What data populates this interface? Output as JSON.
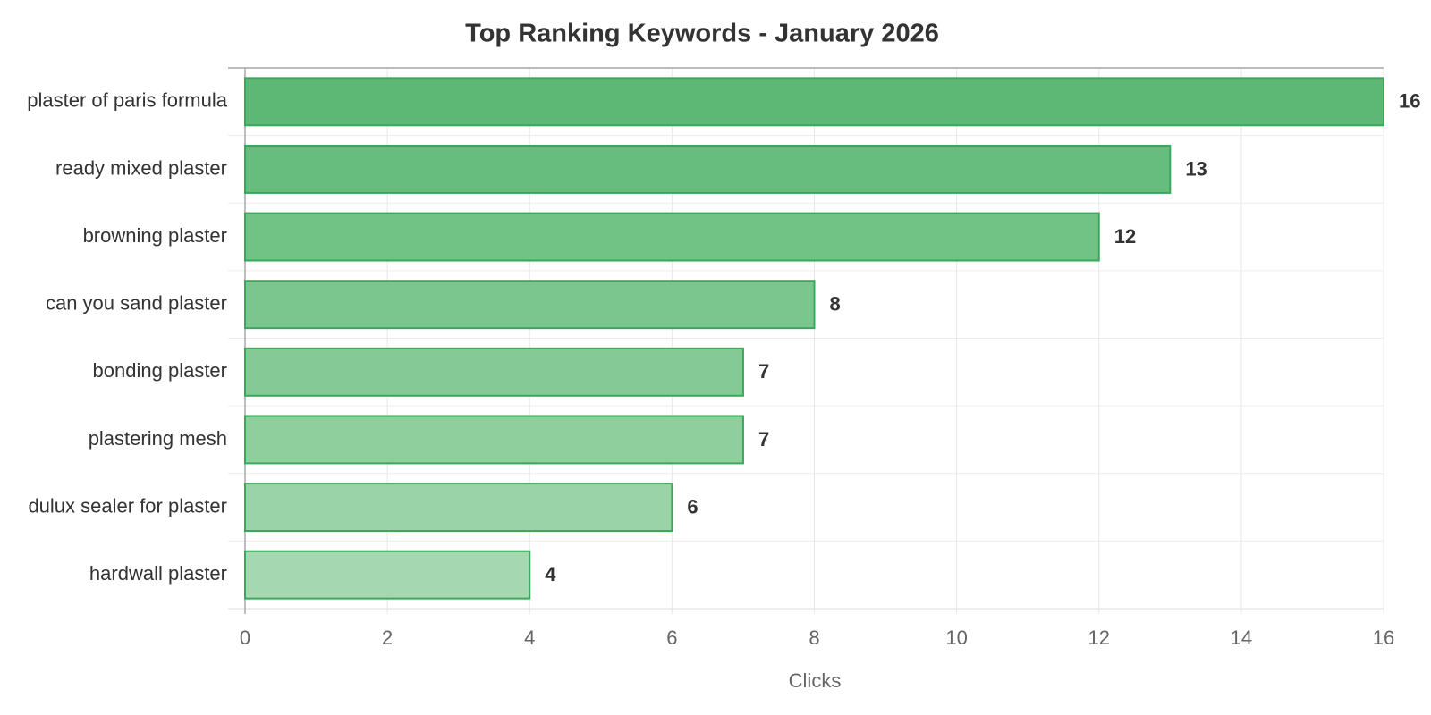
{
  "chart_data": {
    "type": "bar",
    "orientation": "horizontal",
    "title": "Top Ranking Keywords - January 2026",
    "x_label": "Clicks",
    "categories": [
      "plaster of paris formula",
      "ready mixed plaster",
      "browning plaster",
      "can you sand plaster",
      "bonding plaster",
      "plastering mesh",
      "dulux sealer for plaster",
      "hardwall plaster"
    ],
    "values": [
      16,
      13,
      12,
      8,
      7,
      7,
      6,
      4
    ],
    "colors": [
      "#5cb874",
      "#67bd7e",
      "#70c285",
      "#7bc68e",
      "#85ca96",
      "#8fcf9e",
      "#9ad3a7",
      "#a5d8b1"
    ],
    "border_color": "#3aa85a",
    "xlim": [
      0,
      16
    ],
    "xticks": [
      0,
      2,
      4,
      6,
      8,
      10,
      12,
      14,
      16
    ],
    "grid": true
  }
}
